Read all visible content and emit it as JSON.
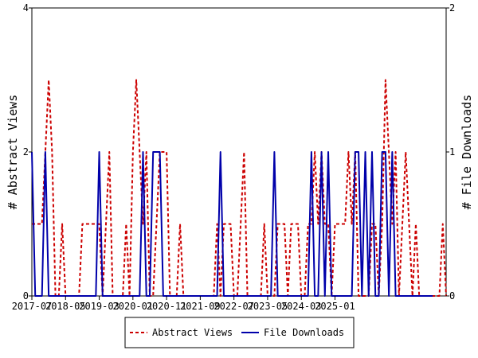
{
  "chart_data": {
    "type": "line",
    "title": "",
    "xlabel": "",
    "ylabel_left": "# Abstract Views",
    "ylabel_right": "# File Downloads",
    "ylim_left": [
      0,
      4
    ],
    "ylim_right": [
      0,
      2
    ],
    "yticks_left": [
      "0",
      "2",
      "4"
    ],
    "yticks_right": [
      "0",
      "1",
      "2"
    ],
    "x_tick_labels": [
      "2017-07",
      "2018-05",
      "2019-03",
      "2020-01",
      "2020-11",
      "2021-09",
      "2022-07",
      "2023-05",
      "2024-03",
      "2025-01"
    ],
    "grid": false,
    "legend_position": "bottom",
    "colors": {
      "abstract_views": "#cc0000",
      "file_downloads": "#0000aa"
    },
    "series": [
      {
        "name": "Abstract Views",
        "axis": "left",
        "style": "dashed",
        "values": [
          1,
          1,
          1,
          1,
          2,
          3,
          2,
          0,
          0,
          1,
          0,
          0,
          0,
          0,
          0,
          1,
          1,
          1,
          1,
          1,
          1,
          0,
          1,
          2,
          0,
          0,
          0,
          0,
          1,
          0,
          2,
          3,
          2,
          1,
          2,
          0,
          0,
          1,
          2,
          2,
          2,
          0,
          0,
          0,
          1,
          0,
          0,
          0,
          0,
          0,
          0,
          0,
          0,
          0,
          0,
          1,
          0,
          1,
          1,
          1,
          0,
          0,
          1,
          2,
          0,
          0,
          0,
          0,
          0,
          1,
          0,
          0,
          0,
          1,
          1,
          1,
          0,
          1,
          1,
          1,
          0,
          0,
          1,
          1,
          2,
          1,
          2,
          1,
          1,
          0,
          1,
          1,
          1,
          1,
          2,
          1,
          2,
          0,
          0,
          0,
          0,
          1,
          1,
          0,
          1,
          3,
          2,
          1,
          2,
          0,
          1,
          2,
          1,
          0,
          1,
          0,
          0,
          0,
          0,
          0,
          0,
          0,
          1,
          0
        ]
      },
      {
        "name": "File Downloads",
        "axis": "right",
        "style": "solid",
        "values": [
          1,
          0,
          0,
          0,
          1,
          0,
          0,
          0,
          0,
          0,
          0,
          0,
          0,
          0,
          0,
          0,
          0,
          0,
          0,
          0,
          1,
          0,
          0,
          0,
          0,
          0,
          0,
          0,
          0,
          0,
          0,
          0,
          0,
          1,
          0,
          0,
          1,
          1,
          1,
          0,
          0,
          0,
          0,
          0,
          0,
          0,
          0,
          0,
          0,
          0,
          0,
          0,
          0,
          0,
          0,
          0,
          1,
          0,
          0,
          0,
          0,
          0,
          0,
          0,
          0,
          0,
          0,
          0,
          0,
          0,
          0,
          0,
          1,
          0,
          0,
          0,
          0,
          0,
          0,
          0,
          0,
          0,
          0,
          1,
          0,
          0,
          1,
          0,
          1,
          0,
          0,
          0,
          0,
          0,
          0,
          0,
          1,
          1,
          0,
          1,
          0,
          1,
          0,
          0,
          1,
          1,
          0,
          1,
          0,
          0,
          0,
          0,
          0,
          0,
          0,
          0,
          0,
          0,
          0,
          0
        ]
      }
    ]
  }
}
